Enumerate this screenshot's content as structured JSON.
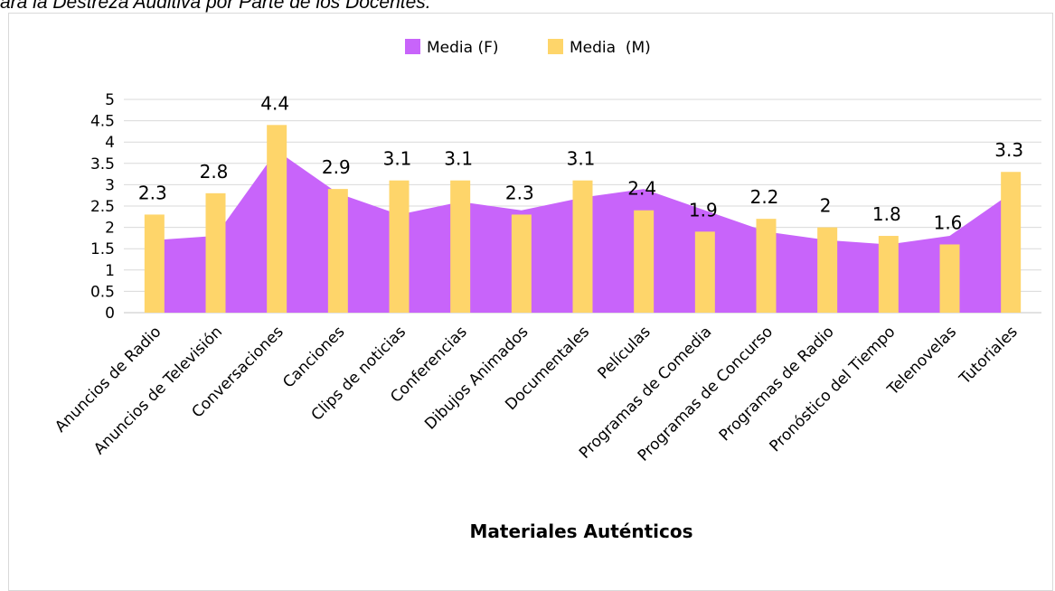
{
  "page_title": "ara la Destreza Auditiva por Parte de los Docentes.",
  "chart_data": {
    "type": "bar",
    "categories": [
      "Anuncios de Radio",
      "Anuncios de Televisión",
      "Conversaciones",
      "Canciones",
      "Clips de noticias",
      "Conferencias",
      "Dibujos Animados",
      "Documentales",
      "Películas",
      "Programas de Comedia",
      "Programas de Concurso",
      "Programas de Radio",
      "Pronóstico del Tiempo",
      "Telenovelas",
      "Tutoriales"
    ],
    "series": [
      {
        "name": "Media (F)",
        "type": "area",
        "color": "#c864fa",
        "values": [
          1.7,
          1.8,
          3.8,
          2.8,
          2.3,
          2.6,
          2.4,
          2.7,
          2.9,
          2.4,
          1.9,
          1.7,
          1.6,
          1.8,
          2.8
        ]
      },
      {
        "name": "Media  (M)",
        "type": "bar",
        "color": "#fed56a",
        "values": [
          2.3,
          2.8,
          4.4,
          2.9,
          3.1,
          3.1,
          2.3,
          3.1,
          2.4,
          1.9,
          2.2,
          2,
          1.8,
          1.6,
          3.3
        ],
        "labels": [
          "2.3",
          "2.8",
          "4.4",
          "2.9",
          "3.1",
          "3.1",
          "2.3",
          "3.1",
          "2.4",
          "1.9",
          "2.2",
          "2",
          "1.8",
          "1.6",
          "3.3"
        ]
      }
    ],
    "yticks": [
      "0",
      "0.5",
      "1",
      "1.5",
      "2",
      "2.5",
      "3",
      "3.5",
      "4",
      "4.5",
      "5"
    ],
    "ylim": [
      0,
      5
    ],
    "xlabel": "Materiales Auténticos",
    "ylabel": "",
    "grid": true,
    "legend": "top-center"
  }
}
